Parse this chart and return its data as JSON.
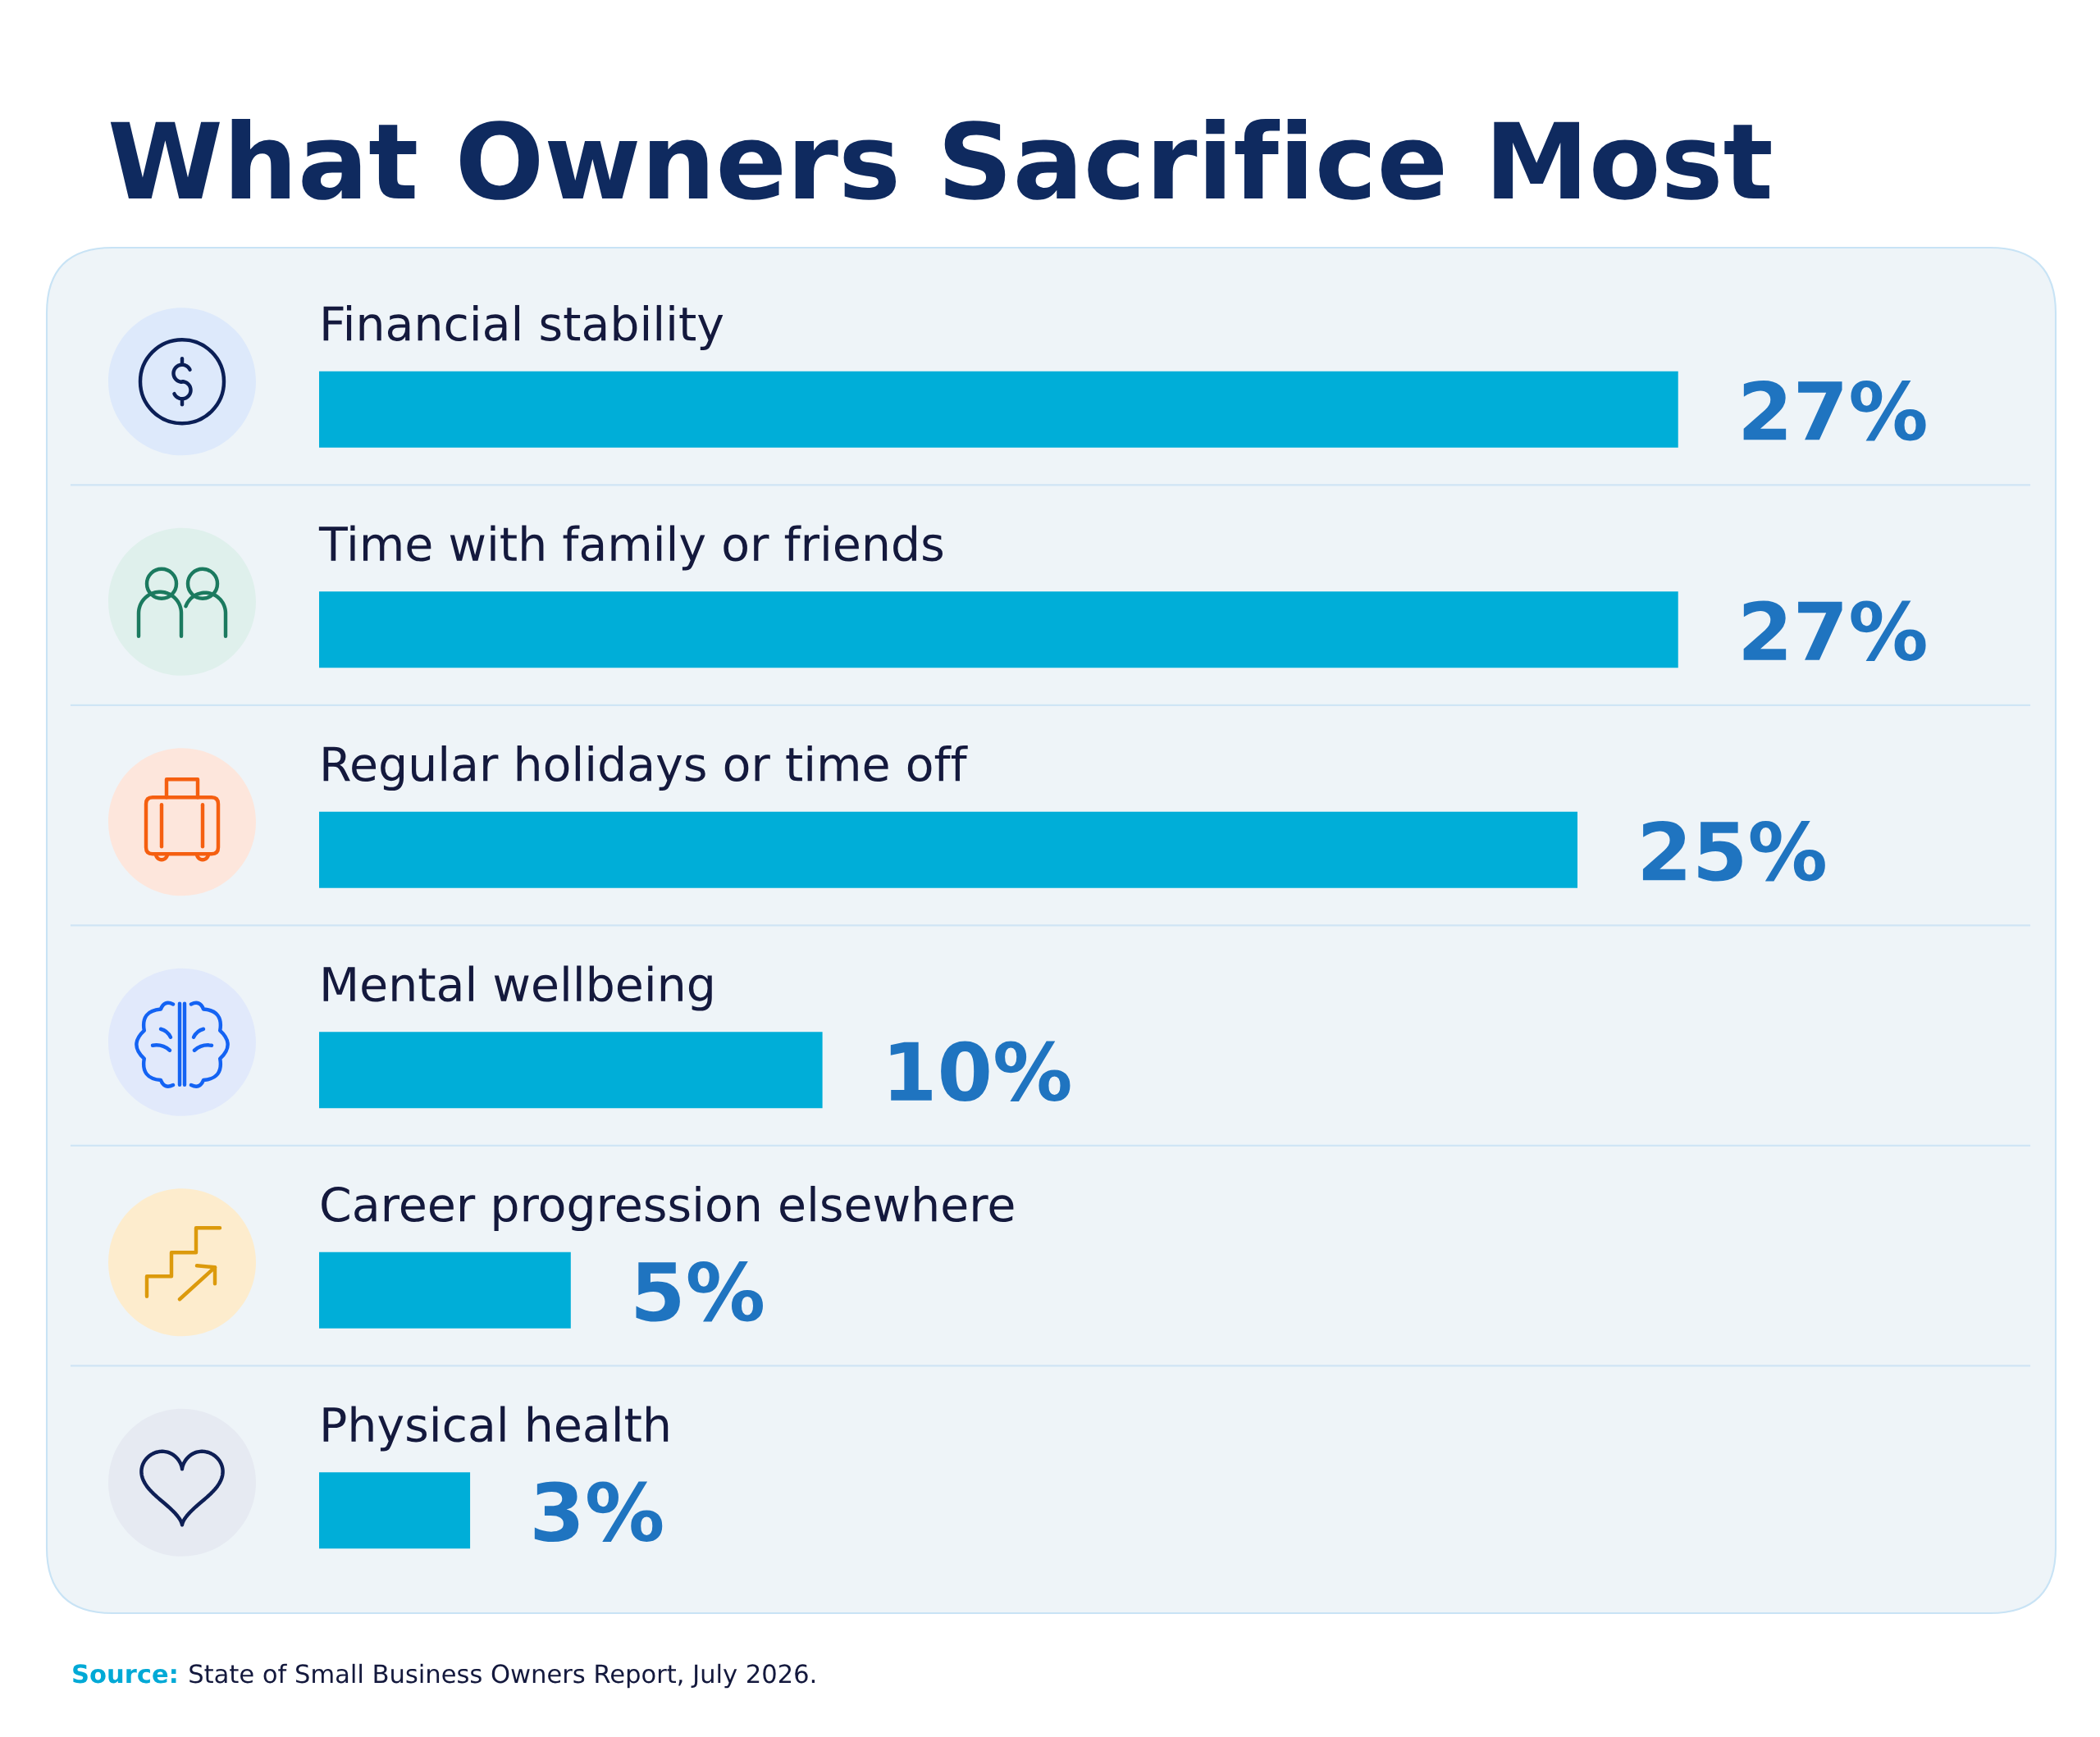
{
  "chart_data": {
    "type": "bar",
    "orientation": "horizontal",
    "title": "What Owners Sacrifice Most",
    "categories": [
      "Financial stability",
      "Time with family or friends",
      "Regular holidays or time off",
      "Mental wellbeing",
      "Career progression elsewhere",
      "Physical health"
    ],
    "values": [
      27,
      27,
      25,
      10,
      5,
      3
    ],
    "value_labels": [
      "27%",
      "27%",
      "25%",
      "10%",
      "5%",
      "3%"
    ],
    "color": "#00aed8",
    "annotations": [
      "Source: State of Small Business Owners Report, July 2026."
    ]
  }
}
